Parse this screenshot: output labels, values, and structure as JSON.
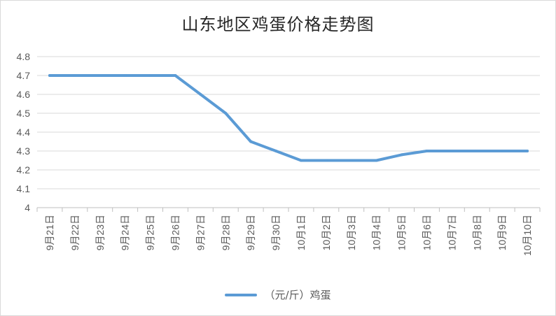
{
  "chart_data": {
    "type": "line",
    "title": "山东地区鸡蛋价格走势图",
    "categories": [
      "9月21日",
      "9月22日",
      "9月23日",
      "9月24日",
      "9月25日",
      "9月26日",
      "9月27日",
      "9月28日",
      "9月29日",
      "9月30日",
      "10月1日",
      "10月2日",
      "10月3日",
      "10月4日",
      "10月5日",
      "10月6日",
      "10月7日",
      "10月8日",
      "10月9日",
      "10月10日"
    ],
    "series": [
      {
        "name": "（元/斤）鸡蛋",
        "color": "#5b9bd5",
        "values": [
          4.7,
          4.7,
          4.7,
          4.7,
          4.7,
          4.7,
          4.6,
          4.5,
          4.35,
          4.3,
          4.25,
          4.25,
          4.25,
          4.25,
          4.28,
          4.3,
          4.3,
          4.3,
          4.3,
          4.3
        ]
      }
    ],
    "yticks": [
      "4",
      "4.1",
      "4.2",
      "4.3",
      "4.4",
      "4.5",
      "4.6",
      "4.7",
      "4.8"
    ],
    "ylim": [
      4,
      4.8
    ],
    "grid": true,
    "legend_position": "bottom"
  }
}
